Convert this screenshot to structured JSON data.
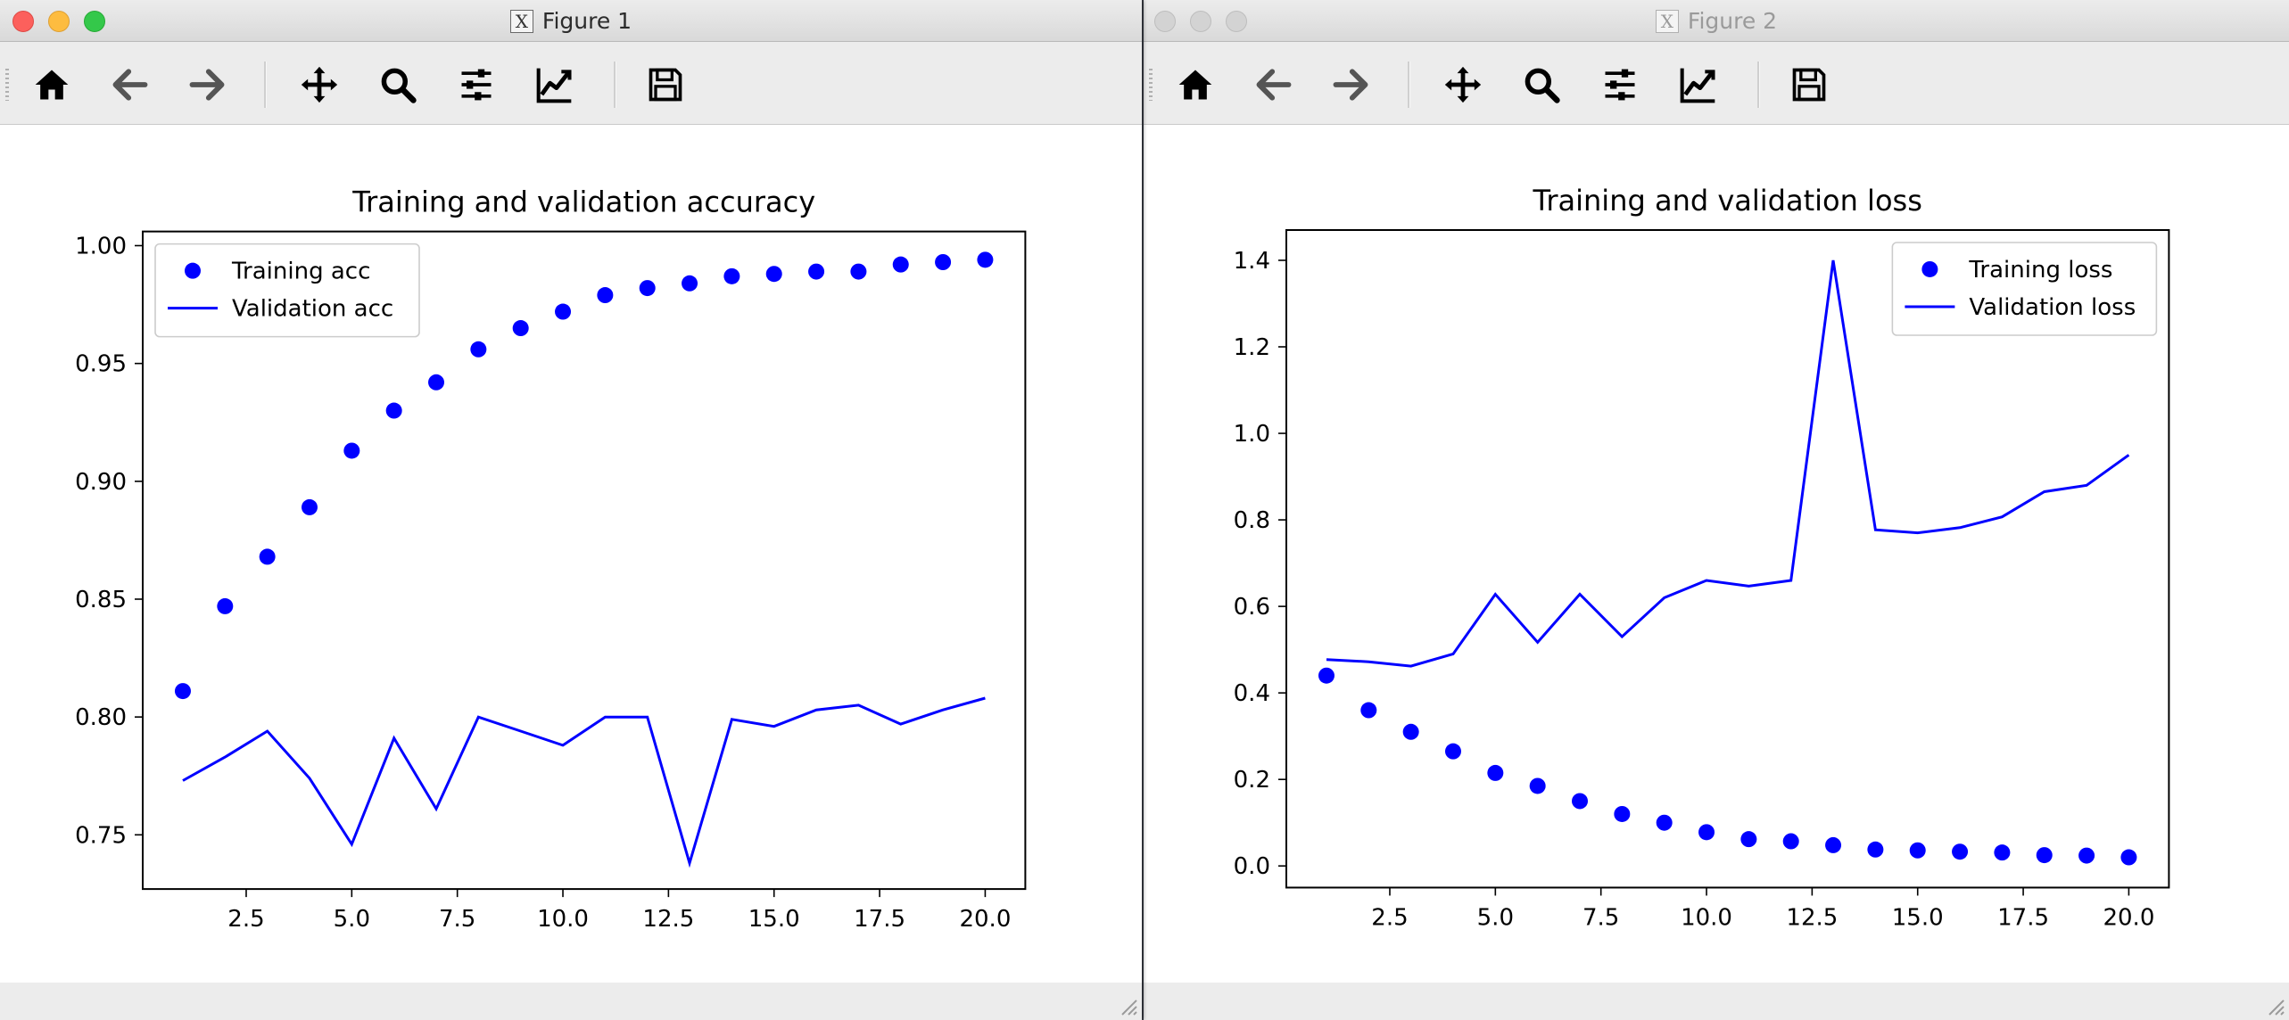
{
  "windows": [
    {
      "title": "Figure 1",
      "active": true
    },
    {
      "title": "Figure 2",
      "active": false
    }
  ],
  "toolbar": {
    "buttons": [
      {
        "name": "home",
        "icon": "home-icon"
      },
      {
        "name": "back",
        "icon": "arrow-left-icon"
      },
      {
        "name": "forward",
        "icon": "arrow-right-icon"
      },
      {
        "name": "pan",
        "icon": "move-icon"
      },
      {
        "name": "zoom",
        "icon": "magnifier-icon"
      },
      {
        "name": "configure-subplots",
        "icon": "sliders-icon"
      },
      {
        "name": "edit-axis",
        "icon": "line-chart-icon"
      },
      {
        "name": "save",
        "icon": "floppy-disk-icon"
      }
    ]
  },
  "colors": {
    "series": "#0000ff",
    "axis": "#000000"
  },
  "chart_data": [
    {
      "type": "scatter+line",
      "title": "Training and validation accuracy",
      "xlabel": "",
      "ylabel": "",
      "xlim": [
        0.05,
        20.95
      ],
      "ylim": [
        0.727,
        1.006
      ],
      "x_ticks": [
        2.5,
        5.0,
        7.5,
        10.0,
        12.5,
        15.0,
        17.5,
        20.0
      ],
      "x_tick_labels": [
        "2.5",
        "5.0",
        "7.5",
        "10.0",
        "12.5",
        "15.0",
        "17.5",
        "20.0"
      ],
      "y_ticks": [
        0.75,
        0.8,
        0.85,
        0.9,
        0.95,
        1.0
      ],
      "y_tick_labels": [
        "0.75",
        "0.80",
        "0.85",
        "0.90",
        "0.95",
        "1.00"
      ],
      "legend_position": "top-left",
      "grid": false,
      "x": [
        1,
        2,
        3,
        4,
        5,
        6,
        7,
        8,
        9,
        10,
        11,
        12,
        13,
        14,
        15,
        16,
        17,
        18,
        19,
        20
      ],
      "series": [
        {
          "name": "Training acc",
          "style": "dots",
          "values": [
            0.811,
            0.847,
            0.868,
            0.889,
            0.913,
            0.93,
            0.942,
            0.956,
            0.965,
            0.972,
            0.979,
            0.982,
            0.984,
            0.987,
            0.988,
            0.989,
            0.989,
            0.992,
            0.993,
            0.994
          ]
        },
        {
          "name": "Validation acc",
          "style": "line",
          "values": [
            0.773,
            0.783,
            0.794,
            0.774,
            0.746,
            0.791,
            0.761,
            0.8,
            0.794,
            0.788,
            0.8,
            0.8,
            0.738,
            0.799,
            0.796,
            0.803,
            0.805,
            0.797,
            0.803,
            0.808
          ]
        }
      ]
    },
    {
      "type": "scatter+line",
      "title": "Training and validation loss",
      "xlabel": "",
      "ylabel": "",
      "xlim": [
        0.05,
        20.95
      ],
      "ylim": [
        -0.05,
        1.47
      ],
      "x_ticks": [
        2.5,
        5.0,
        7.5,
        10.0,
        12.5,
        15.0,
        17.5,
        20.0
      ],
      "x_tick_labels": [
        "2.5",
        "5.0",
        "7.5",
        "10.0",
        "12.5",
        "15.0",
        "17.5",
        "20.0"
      ],
      "y_ticks": [
        0.0,
        0.2,
        0.4,
        0.6,
        0.8,
        1.0,
        1.2,
        1.4
      ],
      "y_tick_labels": [
        "0.0",
        "0.2",
        "0.4",
        "0.6",
        "0.8",
        "1.0",
        "1.2",
        "1.4"
      ],
      "legend_position": "top-right",
      "grid": false,
      "x": [
        1,
        2,
        3,
        4,
        5,
        6,
        7,
        8,
        9,
        10,
        11,
        12,
        13,
        14,
        15,
        16,
        17,
        18,
        19,
        20
      ],
      "series": [
        {
          "name": "Training loss",
          "style": "dots",
          "values": [
            0.44,
            0.36,
            0.31,
            0.265,
            0.215,
            0.185,
            0.15,
            0.12,
            0.1,
            0.078,
            0.062,
            0.057,
            0.048,
            0.038,
            0.036,
            0.033,
            0.031,
            0.025,
            0.024,
            0.02
          ]
        },
        {
          "name": "Validation loss",
          "style": "line",
          "values": [
            0.477,
            0.472,
            0.462,
            0.49,
            0.628,
            0.517,
            0.628,
            0.53,
            0.62,
            0.66,
            0.647,
            0.66,
            1.4,
            0.777,
            0.77,
            0.782,
            0.807,
            0.865,
            0.88,
            0.95
          ]
        }
      ]
    }
  ]
}
